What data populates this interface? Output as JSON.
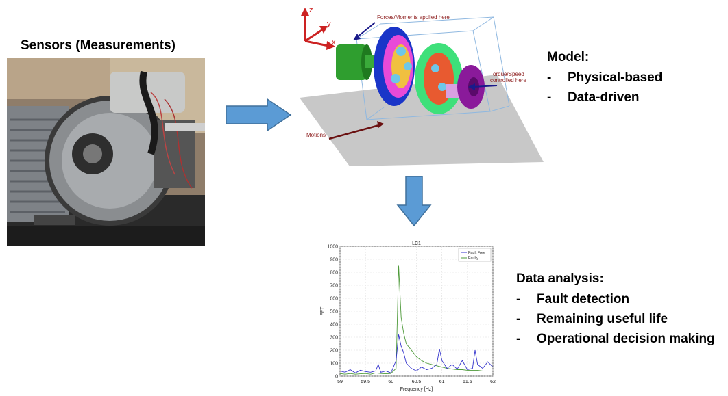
{
  "sensors": {
    "title": "Sensors (Measurements)"
  },
  "model": {
    "heading": "Model:",
    "items": [
      "Physical-based",
      "Data-driven"
    ],
    "bullet": "-",
    "annotations": {
      "forces": "Forces/Moments applied here",
      "torque_line1": "Torque/Speed",
      "torque_line2": "controlled here",
      "motions": "Motions",
      "axis_x": "x",
      "axis_y": "y",
      "axis_z": "z"
    }
  },
  "analysis": {
    "heading": "Data analysis:",
    "items": [
      "Fault detection",
      "Remaining useful life",
      "Operational decision making"
    ],
    "bullet": "-"
  },
  "colors": {
    "arrow_fill": "#5b9bd5",
    "arrow_stroke": "#41719c",
    "fault_free": "#3333cc",
    "faulty": "#4e9a3a"
  },
  "chart_data": {
    "type": "line",
    "title": "LC1",
    "xlabel": "Frequency [Hz]",
    "ylabel": "FFT",
    "xlim": [
      59,
      62
    ],
    "ylim": [
      0,
      1000
    ],
    "xticks": [
      "59",
      "59.5",
      "60",
      "60.5",
      "61",
      "61.5",
      "62"
    ],
    "yticks": [
      "0",
      "100",
      "200",
      "300",
      "400",
      "500",
      "600",
      "700",
      "800",
      "900",
      "1000"
    ],
    "grid": true,
    "legend": "top-right",
    "series": [
      {
        "name": "Fault Free",
        "color": "#3333cc",
        "x": [
          59.0,
          59.1,
          59.2,
          59.3,
          59.4,
          59.5,
          59.6,
          59.7,
          59.75,
          59.8,
          59.9,
          60.0,
          60.1,
          60.15,
          60.2,
          60.25,
          60.3,
          60.4,
          60.5,
          60.6,
          60.7,
          60.8,
          60.9,
          60.95,
          61.0,
          61.1,
          61.2,
          61.3,
          61.4,
          61.5,
          61.6,
          61.65,
          61.7,
          61.8,
          61.9,
          62.0
        ],
        "y": [
          40,
          30,
          50,
          25,
          45,
          35,
          30,
          40,
          90,
          30,
          40,
          25,
          120,
          320,
          230,
          180,
          100,
          60,
          40,
          70,
          50,
          60,
          90,
          210,
          120,
          60,
          90,
          55,
          120,
          50,
          60,
          200,
          90,
          60,
          110,
          70
        ]
      },
      {
        "name": "Faulty",
        "color": "#4e9a3a",
        "x": [
          59.0,
          59.1,
          59.2,
          59.3,
          59.4,
          59.5,
          59.6,
          59.7,
          59.8,
          59.9,
          60.0,
          60.1,
          60.15,
          60.2,
          60.25,
          60.3,
          60.4,
          60.5,
          60.6,
          60.7,
          60.8,
          60.9,
          61.0,
          61.1,
          61.2,
          61.3,
          61.4,
          61.5,
          61.6,
          61.7,
          61.8,
          61.9,
          62.0
        ],
        "y": [
          20,
          15,
          20,
          15,
          18,
          20,
          15,
          25,
          20,
          18,
          20,
          60,
          850,
          450,
          330,
          250,
          200,
          150,
          120,
          100,
          90,
          80,
          70,
          60,
          55,
          50,
          50,
          45,
          45,
          45,
          40,
          40,
          40
        ]
      }
    ]
  }
}
